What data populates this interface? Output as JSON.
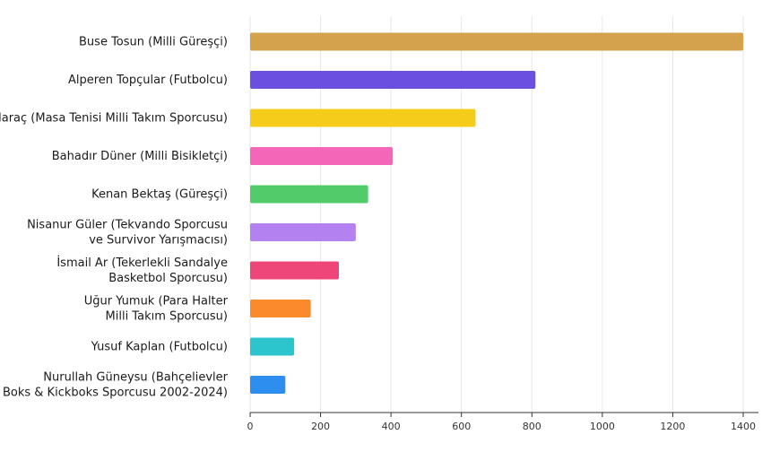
{
  "chart_data": {
    "type": "bar",
    "orientation": "horizontal",
    "title": "",
    "xlabel": "",
    "ylabel": "",
    "xlim": [
      0,
      1400
    ],
    "xticks": [
      0,
      200,
      400,
      600,
      800,
      1000,
      1200,
      1400
    ],
    "grid": true,
    "categories": [
      [
        "Buse Tosun (Milli Güreşçi)"
      ],
      [
        "Alperen Topçular (Futbolcu)"
      ],
      [
        "Ece Haraç (Masa Tenisi Milli Takım Sporcusu)"
      ],
      [
        "Bahadır Düner (Milli Bisikletçi)"
      ],
      [
        "Kenan Bektaş (Güreşçi)"
      ],
      [
        "Nisanur Güler (Tekvando Sporcusu",
        "ve Survivor Yarışmacısı)"
      ],
      [
        "İsmail Ar (Tekerlekli Sandalye",
        "Basketbol Sporcusu)"
      ],
      [
        "Uğur Yumuk (Para Halter",
        "Milli Takım Sporcusu)"
      ],
      [
        "Yusuf Kaplan (Futbolcu)"
      ],
      [
        "Nurullah Güneysu (Bahçelievler",
        "Boks & Kickboks Sporcusu 2002-2024)"
      ]
    ],
    "values": [
      1400,
      810,
      640,
      405,
      335,
      300,
      252,
      172,
      125,
      100
    ],
    "colors": [
      "#D4A24C",
      "#6B4FE0",
      "#F6CC1A",
      "#F466B8",
      "#52CC6A",
      "#B382F0",
      "#EE4679",
      "#FA8A2C",
      "#2CC5CE",
      "#2E8EF0"
    ]
  }
}
